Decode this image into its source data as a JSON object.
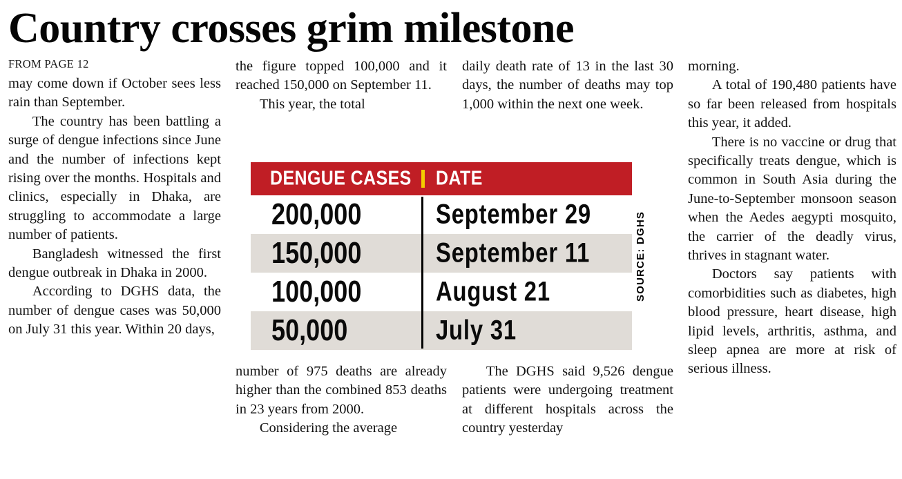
{
  "colors": {
    "header_red": "#c01e25",
    "separator_yellow": "#f4cc00",
    "row_gray": "#e0dcd7"
  },
  "article": {
    "headline": "Country crosses grim milestone",
    "kicker": "FROM PAGE 12",
    "col1": {
      "paragraphs": [
        "may come down if October sees less rain than September.",
        "The country has been battling a surge of dengue infections since June and the number of infections kept rising over the months. Hospitals and clinics, especially in Dhaka, are struggling to accommodate a large number of patients.",
        "Bangladesh witnessed the first dengue outbreak in Dhaka in 2000.",
        "According to DGHS data, the number of dengue cases was 50,000 on July 31 this year. Within 20 days,"
      ]
    },
    "col2_top": {
      "paragraphs": [
        "the figure topped 100,000 and it reached 150,000 on September 11.",
        "This year, the total"
      ]
    },
    "col3_top": {
      "paragraphs": [
        "daily death rate of 13 in the last 30 days, the number of deaths may top 1,000 within the next one week."
      ]
    },
    "col2_bottom": {
      "paragraphs": [
        "number of 975 deaths are already higher than the combined 853 deaths in 23 years from 2000.",
        "Considering the average"
      ]
    },
    "col3_bottom": {
      "paragraphs": [
        "The DGHS said 9,526 dengue patients were undergoing treatment at different hospitals across the country yesterday"
      ]
    },
    "col4": {
      "paragraphs": [
        "morning.",
        "A total of 190,480 patients have so far been released from hospitals this year, it added.",
        "There is no vaccine or drug that specifically treats dengue, which is common in South Asia during the June-to-September monsoon season when the Aedes aegypti mosquito, the carrier of the deadly virus, thrives in stagnant water.",
        "Doctors say patients with comorbidities such as diabetes, high blood pressure, heart disease, high lipid levels, arthritis, asthma, and sleep apnea are more at risk of serious illness."
      ]
    }
  },
  "table": {
    "header": {
      "cases_label": "DENGUE CASES",
      "date_label": "DATE"
    },
    "rows": [
      {
        "cases": "200,000",
        "date": "September 29"
      },
      {
        "cases": "150,000",
        "date": "September 11"
      },
      {
        "cases": "100,000",
        "date": "August 21"
      },
      {
        "cases": "50,000",
        "date": "July 31"
      }
    ],
    "source": "SOURCE: DGHS"
  }
}
